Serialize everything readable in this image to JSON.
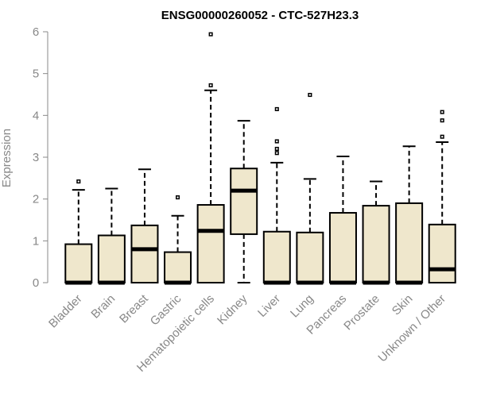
{
  "chart_data": {
    "type": "box",
    "title": "ENSG00000260052 - CTC-527H23.3",
    "ylabel": "Expression",
    "ylim": [
      0,
      6
    ],
    "yticks": [
      0,
      1,
      2,
      3,
      4,
      5,
      6
    ],
    "box_fill": "#efe7cc",
    "categories": [
      "Bladder",
      "Brain",
      "Breast",
      "Gastric",
      "Hematopoietic cells",
      "Kidney",
      "Liver",
      "Lung",
      "Pancreas",
      "Prostate",
      "Skin",
      "Unknown / Other"
    ],
    "boxes": [
      {
        "q1": 0,
        "median": 0,
        "q3": 0.92,
        "whisker_low": 0,
        "whisker_high": 2.22,
        "outliers": [
          2.42
        ]
      },
      {
        "q1": 0,
        "median": 0,
        "q3": 1.13,
        "whisker_low": 0,
        "whisker_high": 2.25,
        "outliers": []
      },
      {
        "q1": 0,
        "median": 0.8,
        "q3": 1.37,
        "whisker_low": 0,
        "whisker_high": 2.71,
        "outliers": []
      },
      {
        "q1": 0,
        "median": 0,
        "q3": 0.73,
        "whisker_low": 0,
        "whisker_high": 1.6,
        "outliers": [
          2.04
        ]
      },
      {
        "q1": 0,
        "median": 1.24,
        "q3": 1.86,
        "whisker_low": 0,
        "whisker_high": 4.6,
        "outliers": [
          4.72,
          5.94
        ]
      },
      {
        "q1": 1.16,
        "median": 2.2,
        "q3": 2.73,
        "whisker_low": 0,
        "whisker_high": 3.87,
        "outliers": []
      },
      {
        "q1": 0,
        "median": 0,
        "q3": 1.22,
        "whisker_low": 0,
        "whisker_high": 2.87,
        "outliers": [
          3.1,
          3.2,
          3.38,
          4.15
        ]
      },
      {
        "q1": 0,
        "median": 0,
        "q3": 1.2,
        "whisker_low": 0,
        "whisker_high": 2.48,
        "outliers": [
          4.49
        ]
      },
      {
        "q1": 0,
        "median": 0,
        "q3": 1.67,
        "whisker_low": 0,
        "whisker_high": 3.02,
        "outliers": []
      },
      {
        "q1": 0,
        "median": 0,
        "q3": 1.84,
        "whisker_low": 0,
        "whisker_high": 2.42,
        "outliers": []
      },
      {
        "q1": 0,
        "median": 0,
        "q3": 1.9,
        "whisker_low": 0,
        "whisker_high": 3.26,
        "outliers": []
      },
      {
        "q1": 0,
        "median": 0.32,
        "q3": 1.39,
        "whisker_low": 0,
        "whisker_high": 3.36,
        "outliers": [
          3.49,
          3.88,
          4.08
        ]
      }
    ]
  }
}
